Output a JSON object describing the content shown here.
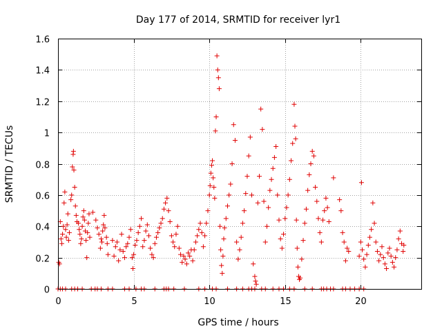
{
  "chart_data": {
    "type": "scatter",
    "title": "Day 177 of 2014, SRMTID for receiver lyr1",
    "xlabel": "GPS time / hours",
    "ylabel": "SRMTID / TECUs",
    "xlim": [
      0,
      24
    ],
    "ylim": [
      0,
      1.6
    ],
    "xticks": [
      0,
      5,
      10,
      15,
      20
    ],
    "yticks": [
      0,
      0.2,
      0.4,
      0.6,
      0.8,
      1,
      1.2,
      1.4,
      1.6
    ],
    "xtick_labels": [
      "0",
      "5",
      "10",
      "15",
      "20"
    ],
    "ytick_labels": [
      "0",
      "0.2",
      "0.4",
      "0.6",
      "0.8",
      "1",
      "1.2",
      "1.4",
      "1.6"
    ],
    "grid": true,
    "marker": "plus",
    "color": "#e00000",
    "series": [
      {
        "name": "lyr1",
        "points": [
          [
            0.05,
            0.17
          ],
          [
            0.1,
            0.16
          ],
          [
            0.15,
            0.43
          ],
          [
            0.2,
            0.32
          ],
          [
            0.25,
            0.29
          ],
          [
            0.3,
            0.35
          ],
          [
            0.35,
            0.4
          ],
          [
            0.4,
            0.55
          ],
          [
            0.45,
            0.62
          ],
          [
            0.5,
            0.38
          ],
          [
            0.55,
            0.33
          ],
          [
            0.6,
            0.41
          ],
          [
            0.65,
            0.48
          ],
          [
            0.7,
            0.31
          ],
          [
            0.75,
            0.36
          ],
          [
            0.85,
            0.57
          ],
          [
            0.9,
            0.6
          ],
          [
            0.95,
            0.78
          ],
          [
            1.0,
            0.86
          ],
          [
            1.02,
            0.88
          ],
          [
            1.05,
            0.76
          ],
          [
            1.1,
            0.65
          ],
          [
            1.15,
            0.53
          ],
          [
            1.2,
            0.47
          ],
          [
            1.25,
            0.43
          ],
          [
            1.35,
            0.42
          ],
          [
            1.4,
            0.38
          ],
          [
            1.45,
            0.35
          ],
          [
            1.5,
            0.29
          ],
          [
            1.55,
            0.32
          ],
          [
            1.6,
            0.4
          ],
          [
            1.65,
            0.46
          ],
          [
            1.7,
            0.5
          ],
          [
            1.75,
            0.44
          ],
          [
            1.8,
            0.37
          ],
          [
            1.85,
            0.31
          ],
          [
            1.9,
            0.2
          ],
          [
            1.95,
            0.36
          ],
          [
            2.0,
            0.42
          ],
          [
            2.05,
            0.48
          ],
          [
            2.1,
            0.33
          ],
          [
            2.3,
            0.49
          ],
          [
            2.5,
            0.44
          ],
          [
            2.6,
            0.39
          ],
          [
            2.7,
            0.35
          ],
          [
            2.8,
            0.26
          ],
          [
            2.85,
            0.32
          ],
          [
            2.9,
            0.3
          ],
          [
            2.95,
            0.37
          ],
          [
            3.0,
            0.41
          ],
          [
            3.05,
            0.47
          ],
          [
            3.1,
            0.39
          ],
          [
            3.2,
            0.33
          ],
          [
            3.25,
            0.29
          ],
          [
            3.3,
            0.22
          ],
          [
            3.6,
            0.31
          ],
          [
            3.7,
            0.21
          ],
          [
            3.8,
            0.27
          ],
          [
            3.9,
            0.3
          ],
          [
            4.0,
            0.18
          ],
          [
            4.1,
            0.25
          ],
          [
            4.2,
            0.35
          ],
          [
            4.3,
            0.24
          ],
          [
            4.4,
            0.2
          ],
          [
            4.5,
            0.27
          ],
          [
            4.6,
            0.29
          ],
          [
            4.7,
            0.33
          ],
          [
            4.8,
            0.38
          ],
          [
            4.9,
            0.2
          ],
          [
            4.95,
            0.13
          ],
          [
            5.0,
            0.22
          ],
          [
            5.1,
            0.28
          ],
          [
            5.2,
            0.31
          ],
          [
            5.3,
            0.36
          ],
          [
            5.4,
            0.4
          ],
          [
            5.5,
            0.45
          ],
          [
            5.6,
            0.27
          ],
          [
            5.7,
            0.31
          ],
          [
            5.8,
            0.37
          ],
          [
            5.9,
            0.41
          ],
          [
            6.0,
            0.34
          ],
          [
            6.1,
            0.26
          ],
          [
            6.2,
            0.22
          ],
          [
            6.3,
            0.2
          ],
          [
            6.4,
            0.29
          ],
          [
            6.5,
            0.33
          ],
          [
            6.6,
            0.36
          ],
          [
            6.7,
            0.39
          ],
          [
            6.8,
            0.42
          ],
          [
            6.9,
            0.45
          ],
          [
            7.0,
            0.51
          ],
          [
            7.1,
            0.55
          ],
          [
            7.2,
            0.58
          ],
          [
            7.3,
            0.5
          ],
          [
            7.4,
            0.43
          ],
          [
            7.5,
            0.34
          ],
          [
            7.6,
            0.3
          ],
          [
            7.7,
            0.27
          ],
          [
            7.8,
            0.35
          ],
          [
            7.9,
            0.4
          ],
          [
            8.0,
            0.26
          ],
          [
            8.1,
            0.22
          ],
          [
            8.2,
            0.17
          ],
          [
            8.3,
            0.21
          ],
          [
            8.4,
            0.19
          ],
          [
            8.5,
            0.16
          ],
          [
            8.6,
            0.23
          ],
          [
            8.7,
            0.21
          ],
          [
            8.8,
            0.25
          ],
          [
            8.9,
            0.18
          ],
          [
            9.0,
            0.25
          ],
          [
            9.1,
            0.3
          ],
          [
            9.2,
            0.34
          ],
          [
            9.3,
            0.38
          ],
          [
            9.4,
            0.42
          ],
          [
            9.5,
            0.36
          ],
          [
            9.6,
            0.27
          ],
          [
            9.7,
            0.34
          ],
          [
            9.8,
            0.42
          ],
          [
            9.9,
            0.5
          ],
          [
            10.0,
            0.6
          ],
          [
            10.05,
            0.66
          ],
          [
            10.1,
            0.74
          ],
          [
            10.15,
            0.79
          ],
          [
            10.2,
            0.82
          ],
          [
            10.25,
            0.71
          ],
          [
            10.3,
            0.65
          ],
          [
            10.35,
            0.58
          ],
          [
            10.4,
            1.01
          ],
          [
            10.45,
            1.1
          ],
          [
            10.5,
            1.49
          ],
          [
            10.55,
            1.4
          ],
          [
            10.6,
            1.35
          ],
          [
            10.65,
            1.28
          ],
          [
            10.7,
            0.4
          ],
          [
            10.75,
            0.25
          ],
          [
            10.8,
            0.15
          ],
          [
            10.85,
            0.1
          ],
          [
            10.9,
            0.21
          ],
          [
            10.95,
            0.32
          ],
          [
            11.0,
            0.39
          ],
          [
            11.1,
            0.45
          ],
          [
            11.2,
            0.53
          ],
          [
            11.3,
            0.6
          ],
          [
            11.4,
            0.67
          ],
          [
            11.5,
            0.8
          ],
          [
            11.6,
            1.05
          ],
          [
            11.7,
            0.95
          ],
          [
            11.8,
            0.3
          ],
          [
            11.9,
            0.19
          ],
          [
            12.0,
            0.25
          ],
          [
            12.1,
            0.33
          ],
          [
            12.2,
            0.42
          ],
          [
            12.3,
            0.5
          ],
          [
            12.4,
            0.61
          ],
          [
            12.5,
            0.72
          ],
          [
            12.6,
            0.85
          ],
          [
            12.7,
            0.97
          ],
          [
            12.8,
            0.6
          ],
          [
            12.9,
            0.16
          ],
          [
            13.0,
            0.08
          ],
          [
            13.05,
            0.05
          ],
          [
            13.1,
            0.03
          ],
          [
            13.2,
            0.55
          ],
          [
            13.3,
            0.72
          ],
          [
            13.4,
            1.15
          ],
          [
            13.5,
            1.02
          ],
          [
            13.6,
            0.56
          ],
          [
            13.7,
            0.3
          ],
          [
            13.8,
            0.4
          ],
          [
            13.9,
            0.52
          ],
          [
            14.0,
            0.63
          ],
          [
            14.1,
            0.7
          ],
          [
            14.2,
            0.77
          ],
          [
            14.3,
            0.84
          ],
          [
            14.4,
            0.91
          ],
          [
            14.5,
            0.6
          ],
          [
            14.6,
            0.44
          ],
          [
            14.7,
            0.32
          ],
          [
            14.8,
            0.26
          ],
          [
            14.9,
            0.35
          ],
          [
            15.0,
            0.45
          ],
          [
            15.1,
            0.52
          ],
          [
            15.2,
            0.6
          ],
          [
            15.3,
            0.7
          ],
          [
            15.4,
            0.82
          ],
          [
            15.5,
            0.93
          ],
          [
            15.6,
            1.18
          ],
          [
            15.65,
            1.04
          ],
          [
            15.7,
            0.96
          ],
          [
            15.75,
            0.44
          ],
          [
            15.8,
            0.26
          ],
          [
            15.85,
            0.14
          ],
          [
            15.9,
            0.08
          ],
          [
            15.95,
            0.06
          ],
          [
            16.0,
            0.07
          ],
          [
            16.1,
            0.19
          ],
          [
            16.2,
            0.31
          ],
          [
            16.3,
            0.42
          ],
          [
            16.4,
            0.51
          ],
          [
            16.5,
            0.63
          ],
          [
            16.6,
            0.73
          ],
          [
            16.7,
            0.8
          ],
          [
            16.8,
            0.88
          ],
          [
            16.9,
            0.85
          ],
          [
            17.0,
            0.65
          ],
          [
            17.1,
            0.56
          ],
          [
            17.2,
            0.45
          ],
          [
            17.3,
            0.36
          ],
          [
            17.4,
            0.3
          ],
          [
            17.5,
            0.44
          ],
          [
            17.6,
            0.5
          ],
          [
            17.7,
            0.58
          ],
          [
            17.8,
            0.52
          ],
          [
            17.9,
            0.43
          ],
          [
            18.2,
            0.71
          ],
          [
            18.6,
            0.57
          ],
          [
            18.7,
            0.5
          ],
          [
            18.8,
            0.36
          ],
          [
            18.9,
            0.3
          ],
          [
            19.0,
            0.18
          ],
          [
            19.1,
            0.26
          ],
          [
            19.2,
            0.24
          ],
          [
            19.9,
            0.21
          ],
          [
            20.0,
            0.3
          ],
          [
            20.05,
            0.68
          ],
          [
            20.1,
            0.25
          ],
          [
            20.2,
            0.19
          ],
          [
            20.3,
            0.14
          ],
          [
            20.4,
            0.22
          ],
          [
            20.5,
            0.28
          ],
          [
            20.6,
            0.33
          ],
          [
            20.7,
            0.38
          ],
          [
            20.8,
            0.55
          ],
          [
            20.9,
            0.42
          ],
          [
            21.0,
            0.3
          ],
          [
            21.1,
            0.24
          ],
          [
            21.2,
            0.18
          ],
          [
            21.3,
            0.22
          ],
          [
            21.4,
            0.27
          ],
          [
            21.5,
            0.2
          ],
          [
            21.6,
            0.16
          ],
          [
            21.7,
            0.13
          ],
          [
            21.8,
            0.23
          ],
          [
            21.9,
            0.26
          ],
          [
            22.0,
            0.21
          ],
          [
            22.1,
            0.17
          ],
          [
            22.2,
            0.14
          ],
          [
            22.3,
            0.2
          ],
          [
            22.4,
            0.25
          ],
          [
            22.5,
            0.32
          ],
          [
            22.6,
            0.37
          ],
          [
            22.7,
            0.29
          ],
          [
            22.8,
            0.24
          ],
          [
            22.85,
            0.28
          ],
          [
            0.0,
            0
          ],
          [
            0.15,
            0
          ],
          [
            0.3,
            0
          ],
          [
            0.5,
            0
          ],
          [
            0.9,
            0
          ],
          [
            1.1,
            0
          ],
          [
            1.3,
            0
          ],
          [
            1.6,
            0
          ],
          [
            2.2,
            0
          ],
          [
            2.45,
            0
          ],
          [
            2.6,
            0
          ],
          [
            2.85,
            0
          ],
          [
            3.3,
            0
          ],
          [
            3.6,
            0
          ],
          [
            4.4,
            0
          ],
          [
            4.7,
            0
          ],
          [
            5.15,
            0
          ],
          [
            5.5,
            0
          ],
          [
            5.7,
            0
          ],
          [
            6.4,
            0
          ],
          [
            7.0,
            0
          ],
          [
            7.15,
            0
          ],
          [
            7.3,
            0
          ],
          [
            7.65,
            0
          ],
          [
            8.35,
            0
          ],
          [
            9.3,
            0
          ],
          [
            9.7,
            0
          ],
          [
            10.2,
            0
          ],
          [
            10.45,
            0
          ],
          [
            11.2,
            0
          ],
          [
            11.8,
            0
          ],
          [
            12.2,
            0
          ],
          [
            12.6,
            0
          ],
          [
            12.8,
            0
          ],
          [
            13.0,
            0
          ],
          [
            13.45,
            0
          ],
          [
            13.7,
            0
          ],
          [
            14.2,
            0
          ],
          [
            14.6,
            0
          ],
          [
            14.9,
            0
          ],
          [
            15.3,
            0
          ],
          [
            15.6,
            0
          ],
          [
            16.3,
            0
          ],
          [
            16.8,
            0
          ],
          [
            17.4,
            0
          ],
          [
            17.55,
            0
          ],
          [
            17.75,
            0
          ],
          [
            18.0,
            0
          ],
          [
            18.2,
            0
          ],
          [
            18.8,
            0
          ],
          [
            19.0,
            0
          ],
          [
            19.3,
            0
          ],
          [
            19.6,
            0
          ],
          [
            19.9,
            0
          ],
          [
            20.2,
            0
          ]
        ]
      }
    ]
  }
}
